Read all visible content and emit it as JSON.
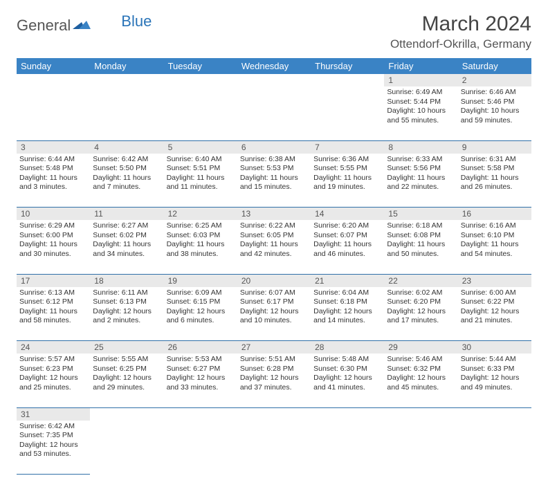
{
  "logo": {
    "general": "General",
    "blue": "Blue"
  },
  "title": "March 2024",
  "location": "Ottendorf-Okrilla, Germany",
  "colors": {
    "header_bg": "#3a83c5",
    "header_text": "#ffffff",
    "daynum_bg": "#e9e9e9",
    "border": "#2f6fa8",
    "logo_blue": "#2a74b8"
  },
  "fonts": {
    "title_size": 30,
    "location_size": 17,
    "dayhead_size": 13,
    "cell_size": 10.5
  },
  "day_headers": [
    "Sunday",
    "Monday",
    "Tuesday",
    "Wednesday",
    "Thursday",
    "Friday",
    "Saturday"
  ],
  "weeks": [
    [
      null,
      null,
      null,
      null,
      null,
      {
        "n": "1",
        "sunrise": "Sunrise: 6:49 AM",
        "sunset": "Sunset: 5:44 PM",
        "daylight1": "Daylight: 10 hours",
        "daylight2": "and 55 minutes."
      },
      {
        "n": "2",
        "sunrise": "Sunrise: 6:46 AM",
        "sunset": "Sunset: 5:46 PM",
        "daylight1": "Daylight: 10 hours",
        "daylight2": "and 59 minutes."
      }
    ],
    [
      {
        "n": "3",
        "sunrise": "Sunrise: 6:44 AM",
        "sunset": "Sunset: 5:48 PM",
        "daylight1": "Daylight: 11 hours",
        "daylight2": "and 3 minutes."
      },
      {
        "n": "4",
        "sunrise": "Sunrise: 6:42 AM",
        "sunset": "Sunset: 5:50 PM",
        "daylight1": "Daylight: 11 hours",
        "daylight2": "and 7 minutes."
      },
      {
        "n": "5",
        "sunrise": "Sunrise: 6:40 AM",
        "sunset": "Sunset: 5:51 PM",
        "daylight1": "Daylight: 11 hours",
        "daylight2": "and 11 minutes."
      },
      {
        "n": "6",
        "sunrise": "Sunrise: 6:38 AM",
        "sunset": "Sunset: 5:53 PM",
        "daylight1": "Daylight: 11 hours",
        "daylight2": "and 15 minutes."
      },
      {
        "n": "7",
        "sunrise": "Sunrise: 6:36 AM",
        "sunset": "Sunset: 5:55 PM",
        "daylight1": "Daylight: 11 hours",
        "daylight2": "and 19 minutes."
      },
      {
        "n": "8",
        "sunrise": "Sunrise: 6:33 AM",
        "sunset": "Sunset: 5:56 PM",
        "daylight1": "Daylight: 11 hours",
        "daylight2": "and 22 minutes."
      },
      {
        "n": "9",
        "sunrise": "Sunrise: 6:31 AM",
        "sunset": "Sunset: 5:58 PM",
        "daylight1": "Daylight: 11 hours",
        "daylight2": "and 26 minutes."
      }
    ],
    [
      {
        "n": "10",
        "sunrise": "Sunrise: 6:29 AM",
        "sunset": "Sunset: 6:00 PM",
        "daylight1": "Daylight: 11 hours",
        "daylight2": "and 30 minutes."
      },
      {
        "n": "11",
        "sunrise": "Sunrise: 6:27 AM",
        "sunset": "Sunset: 6:02 PM",
        "daylight1": "Daylight: 11 hours",
        "daylight2": "and 34 minutes."
      },
      {
        "n": "12",
        "sunrise": "Sunrise: 6:25 AM",
        "sunset": "Sunset: 6:03 PM",
        "daylight1": "Daylight: 11 hours",
        "daylight2": "and 38 minutes."
      },
      {
        "n": "13",
        "sunrise": "Sunrise: 6:22 AM",
        "sunset": "Sunset: 6:05 PM",
        "daylight1": "Daylight: 11 hours",
        "daylight2": "and 42 minutes."
      },
      {
        "n": "14",
        "sunrise": "Sunrise: 6:20 AM",
        "sunset": "Sunset: 6:07 PM",
        "daylight1": "Daylight: 11 hours",
        "daylight2": "and 46 minutes."
      },
      {
        "n": "15",
        "sunrise": "Sunrise: 6:18 AM",
        "sunset": "Sunset: 6:08 PM",
        "daylight1": "Daylight: 11 hours",
        "daylight2": "and 50 minutes."
      },
      {
        "n": "16",
        "sunrise": "Sunrise: 6:16 AM",
        "sunset": "Sunset: 6:10 PM",
        "daylight1": "Daylight: 11 hours",
        "daylight2": "and 54 minutes."
      }
    ],
    [
      {
        "n": "17",
        "sunrise": "Sunrise: 6:13 AM",
        "sunset": "Sunset: 6:12 PM",
        "daylight1": "Daylight: 11 hours",
        "daylight2": "and 58 minutes."
      },
      {
        "n": "18",
        "sunrise": "Sunrise: 6:11 AM",
        "sunset": "Sunset: 6:13 PM",
        "daylight1": "Daylight: 12 hours",
        "daylight2": "and 2 minutes."
      },
      {
        "n": "19",
        "sunrise": "Sunrise: 6:09 AM",
        "sunset": "Sunset: 6:15 PM",
        "daylight1": "Daylight: 12 hours",
        "daylight2": "and 6 minutes."
      },
      {
        "n": "20",
        "sunrise": "Sunrise: 6:07 AM",
        "sunset": "Sunset: 6:17 PM",
        "daylight1": "Daylight: 12 hours",
        "daylight2": "and 10 minutes."
      },
      {
        "n": "21",
        "sunrise": "Sunrise: 6:04 AM",
        "sunset": "Sunset: 6:18 PM",
        "daylight1": "Daylight: 12 hours",
        "daylight2": "and 14 minutes."
      },
      {
        "n": "22",
        "sunrise": "Sunrise: 6:02 AM",
        "sunset": "Sunset: 6:20 PM",
        "daylight1": "Daylight: 12 hours",
        "daylight2": "and 17 minutes."
      },
      {
        "n": "23",
        "sunrise": "Sunrise: 6:00 AM",
        "sunset": "Sunset: 6:22 PM",
        "daylight1": "Daylight: 12 hours",
        "daylight2": "and 21 minutes."
      }
    ],
    [
      {
        "n": "24",
        "sunrise": "Sunrise: 5:57 AM",
        "sunset": "Sunset: 6:23 PM",
        "daylight1": "Daylight: 12 hours",
        "daylight2": "and 25 minutes."
      },
      {
        "n": "25",
        "sunrise": "Sunrise: 5:55 AM",
        "sunset": "Sunset: 6:25 PM",
        "daylight1": "Daylight: 12 hours",
        "daylight2": "and 29 minutes."
      },
      {
        "n": "26",
        "sunrise": "Sunrise: 5:53 AM",
        "sunset": "Sunset: 6:27 PM",
        "daylight1": "Daylight: 12 hours",
        "daylight2": "and 33 minutes."
      },
      {
        "n": "27",
        "sunrise": "Sunrise: 5:51 AM",
        "sunset": "Sunset: 6:28 PM",
        "daylight1": "Daylight: 12 hours",
        "daylight2": "and 37 minutes."
      },
      {
        "n": "28",
        "sunrise": "Sunrise: 5:48 AM",
        "sunset": "Sunset: 6:30 PM",
        "daylight1": "Daylight: 12 hours",
        "daylight2": "and 41 minutes."
      },
      {
        "n": "29",
        "sunrise": "Sunrise: 5:46 AM",
        "sunset": "Sunset: 6:32 PM",
        "daylight1": "Daylight: 12 hours",
        "daylight2": "and 45 minutes."
      },
      {
        "n": "30",
        "sunrise": "Sunrise: 5:44 AM",
        "sunset": "Sunset: 6:33 PM",
        "daylight1": "Daylight: 12 hours",
        "daylight2": "and 49 minutes."
      }
    ],
    [
      {
        "n": "31",
        "sunrise": "Sunrise: 6:42 AM",
        "sunset": "Sunset: 7:35 PM",
        "daylight1": "Daylight: 12 hours",
        "daylight2": "and 53 minutes."
      },
      null,
      null,
      null,
      null,
      null,
      null
    ]
  ]
}
